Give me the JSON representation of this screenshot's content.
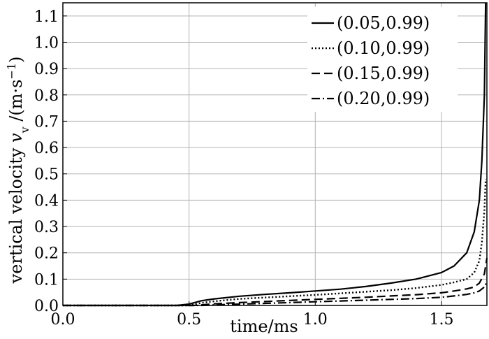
{
  "chart_data": {
    "type": "line",
    "xlabel": "time/ms",
    "ylabel_prefix": "vertical velocity ",
    "ylabel_var": "v",
    "ylabel_sub": "v",
    "ylabel_unit_open": " /(m·s",
    "ylabel_unit_sup": "−1",
    "ylabel_unit_close": ")",
    "xlim": [
      0.0,
      1.68
    ],
    "ylim": [
      0.0,
      1.15
    ],
    "xticks": [
      0.0,
      0.5,
      1.0,
      1.5
    ],
    "xtick_labels": [
      "0.0",
      "0.5",
      "1.0",
      "1.5"
    ],
    "yticks": [
      0.0,
      0.1,
      0.2,
      0.3,
      0.4,
      0.5,
      0.6,
      0.7,
      0.8,
      0.9,
      1.0,
      1.1
    ],
    "ytick_labels": [
      "0.0",
      "0.1",
      "0.2",
      "0.3",
      "0.4",
      "0.5",
      "0.6",
      "0.7",
      "0.8",
      "0.9",
      "1.0",
      "1.1"
    ],
    "grid": true,
    "legend_position": "top-right",
    "series": [
      {
        "name": "(0.05,0.99)",
        "dash": "solid",
        "x": [
          0.0,
          0.45,
          0.5,
          0.55,
          0.6,
          0.7,
          0.8,
          0.9,
          1.0,
          1.1,
          1.2,
          1.3,
          1.4,
          1.5,
          1.55,
          1.6,
          1.63,
          1.65,
          1.66,
          1.67,
          1.675
        ],
        "y": [
          0.0,
          0.0,
          0.005,
          0.018,
          0.025,
          0.035,
          0.042,
          0.048,
          0.055,
          0.062,
          0.072,
          0.085,
          0.1,
          0.125,
          0.15,
          0.2,
          0.28,
          0.4,
          0.55,
          0.8,
          1.15
        ]
      },
      {
        "name": "(0.10,0.99)",
        "dash": "dotted",
        "x": [
          0.0,
          0.5,
          0.55,
          0.6,
          0.7,
          0.8,
          0.9,
          1.0,
          1.1,
          1.2,
          1.3,
          1.4,
          1.5,
          1.55,
          1.6,
          1.63,
          1.65,
          1.66,
          1.67,
          1.675
        ],
        "y": [
          0.0,
          0.0,
          0.01,
          0.016,
          0.025,
          0.03,
          0.035,
          0.04,
          0.046,
          0.052,
          0.058,
          0.066,
          0.078,
          0.088,
          0.1,
          0.125,
          0.17,
          0.24,
          0.36,
          0.48
        ]
      },
      {
        "name": "(0.15,0.99)",
        "dash": "dashed",
        "x": [
          0.0,
          0.52,
          0.6,
          0.7,
          0.8,
          0.9,
          1.0,
          1.1,
          1.2,
          1.3,
          1.4,
          1.5,
          1.55,
          1.6,
          1.63,
          1.65,
          1.67,
          1.68
        ],
        "y": [
          0.0,
          0.0,
          0.006,
          0.011,
          0.015,
          0.019,
          0.023,
          0.027,
          0.031,
          0.036,
          0.041,
          0.048,
          0.055,
          0.063,
          0.07,
          0.085,
          0.12,
          0.18
        ]
      },
      {
        "name": "(0.20,0.99)",
        "dash": "dashdot",
        "x": [
          0.0,
          0.55,
          0.6,
          0.7,
          0.8,
          0.9,
          1.0,
          1.1,
          1.2,
          1.3,
          1.4,
          1.5,
          1.55,
          1.6,
          1.63,
          1.65,
          1.67,
          1.68
        ],
        "y": [
          0.0,
          0.0,
          0.002,
          0.005,
          0.008,
          0.011,
          0.014,
          0.017,
          0.02,
          0.023,
          0.026,
          0.031,
          0.036,
          0.042,
          0.048,
          0.055,
          0.07,
          0.09
        ]
      }
    ]
  }
}
